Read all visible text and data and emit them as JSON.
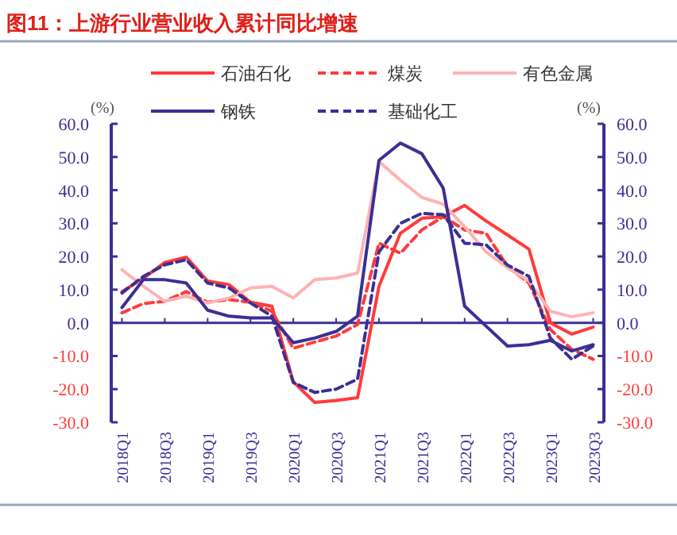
{
  "chart_data": {
    "type": "line",
    "title": "图11：上游行业营业收入累计同比增速",
    "categories": [
      "2018Q1",
      null,
      "2018Q3",
      null,
      "2019Q1",
      null,
      "2019Q3",
      null,
      "2020Q1",
      null,
      "2020Q3",
      null,
      "2021Q1",
      null,
      "2021Q3",
      null,
      "2022Q1",
      null,
      "2022Q3",
      null,
      "2023Q1",
      null,
      "2023Q3"
    ],
    "series": [
      {
        "name": "石油石化",
        "color": "#ff3b3b",
        "line_style": "solid",
        "values": [
          9.4,
          13.4,
          18.2,
          19.8,
          12.6,
          11.5,
          6.2,
          5.0,
          -17.8,
          -24.0,
          -23.4,
          -22.6,
          11.0,
          27.0,
          31.5,
          32.0,
          35.4,
          30.7,
          26.5,
          22.2,
          0.0,
          -3.4,
          -1.3
        ]
      },
      {
        "name": "煤炭",
        "color": "#ff3b3b",
        "line_style": "dashed",
        "values": [
          3.0,
          5.8,
          6.5,
          9.4,
          6.2,
          7.0,
          6.2,
          3.5,
          -7.7,
          -5.8,
          -4.0,
          -0.5,
          24.0,
          21.0,
          28.0,
          32.0,
          28.0,
          27.0,
          17.0,
          12.0,
          -2.0,
          -8.0,
          -11.0
        ]
      },
      {
        "name": "有色金属",
        "color": "#ffb3b3",
        "line_style": "solid",
        "values": [
          16.0,
          11.0,
          6.5,
          8.0,
          6.0,
          7.5,
          10.5,
          11.0,
          7.5,
          13.0,
          13.5,
          15.0,
          48.6,
          43.0,
          37.8,
          35.8,
          29.0,
          21.4,
          16.6,
          12.6,
          3.5,
          1.8,
          3.0
        ]
      },
      {
        "name": "钢铁",
        "color": "#3b2f94",
        "line_style": "solid",
        "values": [
          4.6,
          13.0,
          13.0,
          12.0,
          3.8,
          2.0,
          1.5,
          1.5,
          -6.0,
          -4.6,
          -2.6,
          2.0,
          49.0,
          54.2,
          51.0,
          40.6,
          5.0,
          -1.0,
          -7.0,
          -6.6,
          -5.3,
          -8.5,
          -6.6
        ]
      },
      {
        "name": "基础化工",
        "color": "#3b2f94",
        "line_style": "dashed",
        "values": [
          9.0,
          14.0,
          17.5,
          19.0,
          12.0,
          10.5,
          6.0,
          2.0,
          -18.0,
          -21.0,
          -20.0,
          -17.0,
          21.4,
          30.0,
          33.0,
          32.6,
          24.0,
          23.5,
          17.4,
          14.0,
          -4.6,
          -11.0,
          -7.0
        ]
      }
    ],
    "ylabel": "(%)",
    "y2label": "(%)",
    "ylim": [
      -30,
      60
    ],
    "yticks": [
      {
        "value": -30,
        "label": "-30.0"
      },
      {
        "value": -20,
        "label": "-20.0"
      },
      {
        "value": -10,
        "label": "-10.0"
      },
      {
        "value": 0,
        "label": "0.0"
      },
      {
        "value": 10,
        "label": "10.0"
      },
      {
        "value": 20,
        "label": "20.0"
      },
      {
        "value": 30,
        "label": "30.0"
      },
      {
        "value": 40,
        "label": "40.0"
      },
      {
        "value": 50,
        "label": "50.0"
      },
      {
        "value": 60,
        "label": "60.0"
      }
    ],
    "y2lim": [
      -30,
      60
    ],
    "y2ticks": [
      {
        "value": -30,
        "label": "-30.0"
      },
      {
        "value": -20,
        "label": "-20.0"
      },
      {
        "value": -10,
        "label": "-10.0"
      },
      {
        "value": 0,
        "label": "0.0"
      },
      {
        "value": 10,
        "label": "10.0"
      },
      {
        "value": 20,
        "label": "20.0"
      },
      {
        "value": 30,
        "label": "30.0"
      },
      {
        "value": 40,
        "label": "40.0"
      },
      {
        "value": 50,
        "label": "50.0"
      },
      {
        "value": 60,
        "label": "60.0"
      }
    ],
    "ref_lines": [
      {
        "axis": "y",
        "value": 0,
        "color": "#3b2f94"
      }
    ],
    "legend": "top",
    "grid": false
  }
}
